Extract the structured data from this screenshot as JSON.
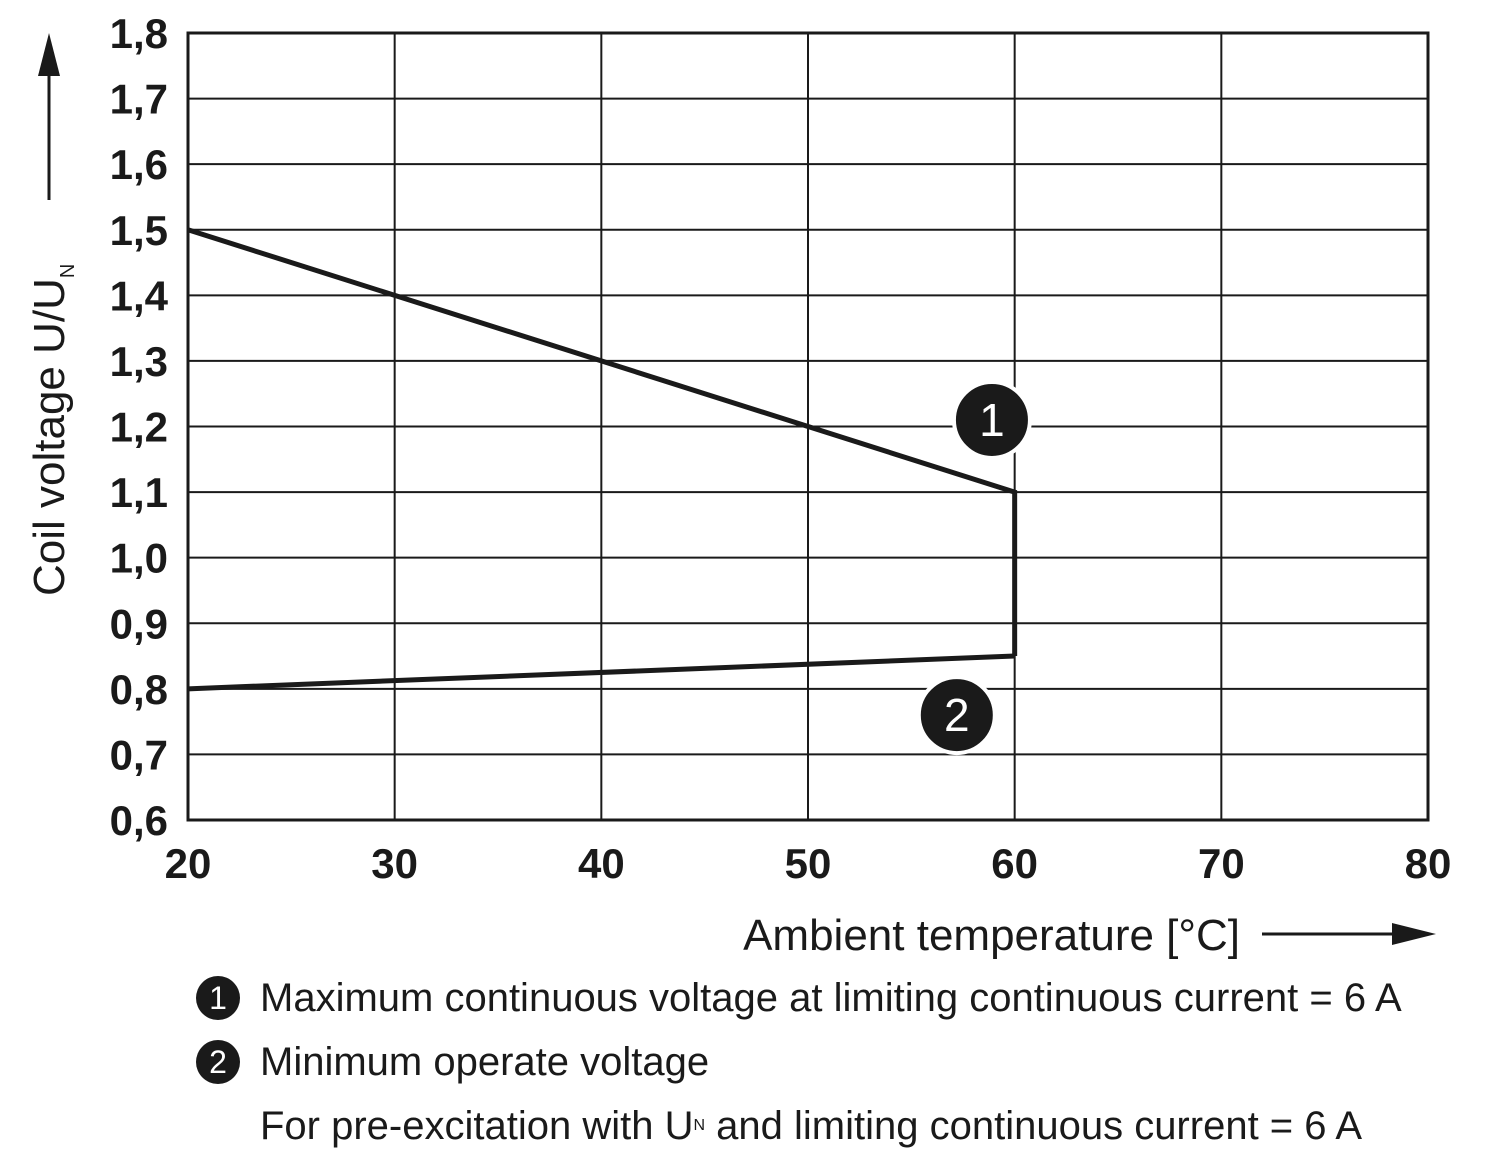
{
  "chart_data": {
    "type": "line",
    "title": "",
    "xlabel": "Ambient temperature [°C]",
    "ylabel": "Coil voltage U/U",
    "ylabel_subscript": "N",
    "xlim": [
      20,
      80
    ],
    "ylim": [
      0.6,
      1.8
    ],
    "x_ticks": [
      "20",
      "30",
      "40",
      "50",
      "60",
      "70",
      "80"
    ],
    "y_ticks": [
      "0,6",
      "0,7",
      "0,8",
      "0,9",
      "1,0",
      "1,1",
      "1,2",
      "1,3",
      "1,4",
      "1,5",
      "1,6",
      "1,7",
      "1,8"
    ],
    "grid": true,
    "series": [
      {
        "name": "1",
        "x": [
          20,
          60,
          60
        ],
        "y": [
          1.5,
          1.1,
          0.85
        ]
      },
      {
        "name": "2",
        "x": [
          20,
          60
        ],
        "y": [
          0.8,
          0.85
        ]
      }
    ],
    "annotations": [
      {
        "text": "1",
        "x": 58.9,
        "y": 1.21
      },
      {
        "text": "2",
        "x": 57.2,
        "y": 0.76
      }
    ],
    "line_color": "#1a1a1a"
  },
  "legend": {
    "items": [
      {
        "badge": "1",
        "text": "Maximum continuous voltage at limiting continuous current = 6 A"
      },
      {
        "badge": "2",
        "text": "Minimum operate voltage"
      }
    ],
    "note_before": "For pre-excitation with U",
    "note_sub": "N",
    "note_after": " and limiting continuous current = 6 A"
  }
}
